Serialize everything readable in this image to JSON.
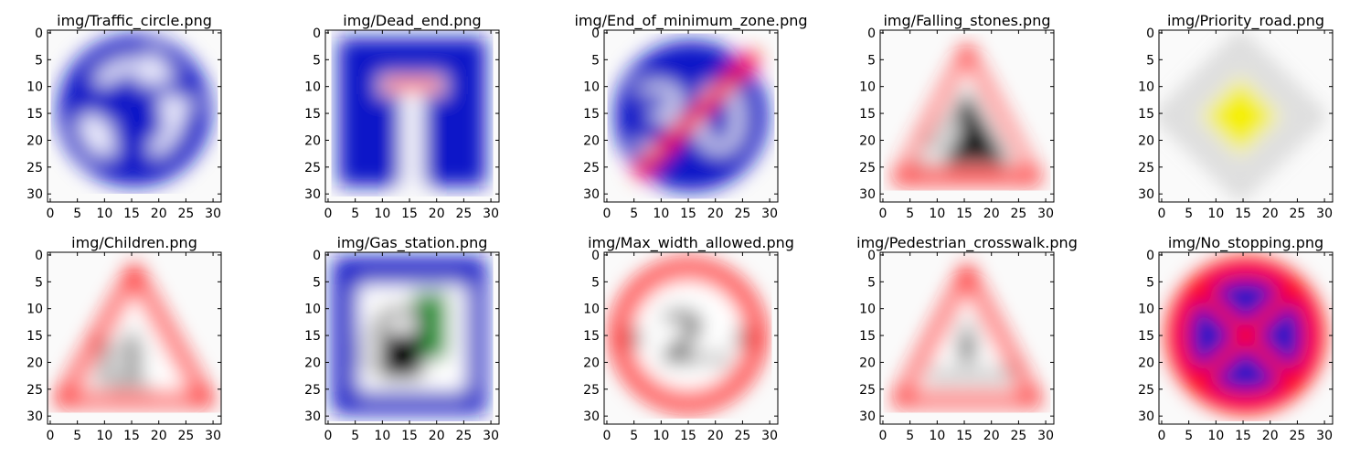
{
  "panels": [
    {
      "title": "img/Traffic_circle.png",
      "sign": "traffic-circle"
    },
    {
      "title": "img/Dead_end.png",
      "sign": "dead-end"
    },
    {
      "title": "img/End_of_minimum_zone.png",
      "sign": "end-of-minimum-zone",
      "number": "30"
    },
    {
      "title": "img/Falling_stones.png",
      "sign": "falling-stones"
    },
    {
      "title": "img/Priority_road.png",
      "sign": "priority-road"
    },
    {
      "title": "img/Children.png",
      "sign": "children"
    },
    {
      "title": "img/Gas_station.png",
      "sign": "gas-station"
    },
    {
      "title": "img/Max_width_allowed.png",
      "sign": "max-width-allowed",
      "number": "2",
      "unit": "m"
    },
    {
      "title": "img/Pedestrian_crosswalk.png",
      "sign": "pedestrian-crosswalk"
    },
    {
      "title": "img/No_stopping.png",
      "sign": "no-stopping"
    }
  ],
  "axes": {
    "x_ticks": [
      "0",
      "5",
      "10",
      "15",
      "20",
      "25",
      "30"
    ],
    "y_ticks": [
      "0",
      "5",
      "10",
      "15",
      "20",
      "25",
      "30"
    ],
    "range": [
      0,
      32
    ]
  },
  "colors": {
    "blue": "#0a14c8",
    "red": "#ff0000",
    "yellow": "#f5f000",
    "green": "#1e9632",
    "white": "#ffffff",
    "black": "#000000"
  }
}
